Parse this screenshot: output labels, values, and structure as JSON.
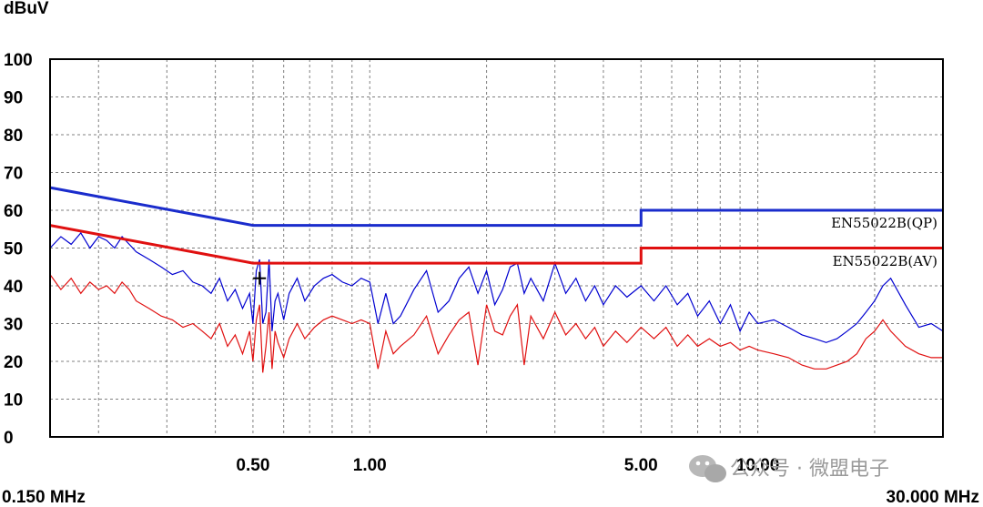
{
  "chart_data": {
    "type": "line",
    "ylabel": "dBuV",
    "ylim": [
      0,
      100
    ],
    "yticks": [
      0,
      10,
      20,
      30,
      40,
      50,
      60,
      70,
      80,
      90,
      100
    ],
    "x_scale": "log",
    "x_unit": "MHz",
    "xlim": [
      0.15,
      30.0
    ],
    "xlim_labels": [
      "0.150 MHz",
      "30.000 MHz"
    ],
    "xtick_labels": [
      {
        "value": 0.5,
        "label": "0.50"
      },
      {
        "value": 1.0,
        "label": "1.00"
      },
      {
        "value": 5.0,
        "label": "5.00"
      },
      {
        "value": 10.0,
        "label": "10.00"
      }
    ],
    "grid": true,
    "colors": {
      "qp": "#0000d0",
      "av": "#e01010",
      "grid": "#808080",
      "frame": "#000000"
    },
    "series": [
      {
        "name": "EN55022B(QP)",
        "kind": "limit",
        "color": "#1a2ccc",
        "x": [
          0.15,
          0.5,
          0.5,
          5.0,
          5.0,
          30.0
        ],
        "y": [
          66,
          56,
          56,
          56,
          60,
          60
        ]
      },
      {
        "name": "EN55022B(AV)",
        "kind": "limit",
        "color": "#e01010",
        "x": [
          0.15,
          0.5,
          0.5,
          5.0,
          5.0,
          30.0
        ],
        "y": [
          56,
          46,
          46,
          46,
          50,
          50
        ]
      },
      {
        "kind": "measurement",
        "color": "#0000d0",
        "x": [
          0.15,
          0.16,
          0.17,
          0.18,
          0.19,
          0.2,
          0.21,
          0.22,
          0.23,
          0.24,
          0.25,
          0.27,
          0.29,
          0.31,
          0.33,
          0.35,
          0.37,
          0.39,
          0.41,
          0.43,
          0.45,
          0.47,
          0.49,
          0.5,
          0.51,
          0.52,
          0.53,
          0.54,
          0.55,
          0.56,
          0.57,
          0.58,
          0.6,
          0.62,
          0.65,
          0.68,
          0.72,
          0.76,
          0.8,
          0.85,
          0.9,
          0.95,
          1.0,
          1.05,
          1.1,
          1.15,
          1.2,
          1.3,
          1.4,
          1.5,
          1.6,
          1.7,
          1.8,
          1.9,
          2.0,
          2.1,
          2.2,
          2.3,
          2.4,
          2.5,
          2.6,
          2.8,
          3.0,
          3.2,
          3.4,
          3.6,
          3.8,
          4.0,
          4.3,
          4.6,
          5.0,
          5.4,
          5.8,
          6.2,
          6.6,
          7.0,
          7.5,
          8.0,
          8.5,
          9.0,
          9.5,
          10.0,
          11.0,
          12.0,
          13.0,
          14.0,
          15.0,
          16.0,
          17.0,
          18.0,
          19.0,
          20.0,
          21.0,
          22.0,
          24.0,
          26.0,
          28.0,
          30.0
        ],
        "y": [
          50,
          53,
          51,
          54,
          50,
          53,
          52,
          50,
          53,
          51,
          49,
          47,
          45,
          43,
          44,
          41,
          40,
          38,
          42,
          36,
          39,
          34,
          38,
          30,
          44,
          47,
          30,
          33,
          47,
          28,
          36,
          38,
          31,
          38,
          42,
          36,
          40,
          42,
          43,
          41,
          40,
          42,
          41,
          30,
          38,
          30,
          32,
          39,
          44,
          33,
          36,
          42,
          45,
          38,
          44,
          35,
          39,
          45,
          46,
          38,
          42,
          36,
          46,
          38,
          42,
          36,
          40,
          35,
          40,
          37,
          40,
          36,
          40,
          35,
          38,
          32,
          36,
          30,
          35,
          28,
          33,
          30,
          31,
          29,
          27,
          26,
          25,
          26,
          28,
          30,
          33,
          36,
          40,
          42,
          35,
          29,
          30,
          28
        ]
      },
      {
        "kind": "measurement",
        "color": "#e01010",
        "x": [
          0.15,
          0.16,
          0.17,
          0.18,
          0.19,
          0.2,
          0.21,
          0.22,
          0.23,
          0.24,
          0.25,
          0.27,
          0.29,
          0.31,
          0.33,
          0.35,
          0.37,
          0.39,
          0.41,
          0.43,
          0.45,
          0.47,
          0.49,
          0.5,
          0.51,
          0.52,
          0.53,
          0.54,
          0.55,
          0.56,
          0.57,
          0.58,
          0.6,
          0.62,
          0.65,
          0.68,
          0.72,
          0.76,
          0.8,
          0.85,
          0.9,
          0.95,
          1.0,
          1.05,
          1.1,
          1.15,
          1.2,
          1.3,
          1.4,
          1.5,
          1.6,
          1.7,
          1.8,
          1.9,
          2.0,
          2.1,
          2.2,
          2.3,
          2.4,
          2.5,
          2.6,
          2.8,
          3.0,
          3.2,
          3.4,
          3.6,
          3.8,
          4.0,
          4.3,
          4.6,
          5.0,
          5.4,
          5.8,
          6.2,
          6.6,
          7.0,
          7.5,
          8.0,
          8.5,
          9.0,
          9.5,
          10.0,
          11.0,
          12.0,
          13.0,
          14.0,
          15.0,
          16.0,
          17.0,
          18.0,
          19.0,
          20.0,
          21.0,
          22.0,
          24.0,
          26.0,
          28.0,
          30.0
        ],
        "y": [
          43,
          39,
          42,
          38,
          41,
          39,
          40,
          38,
          41,
          39,
          36,
          34,
          32,
          31,
          29,
          30,
          28,
          26,
          30,
          24,
          27,
          22,
          28,
          20,
          31,
          35,
          17,
          24,
          33,
          18,
          28,
          25,
          21,
          26,
          30,
          26,
          29,
          31,
          32,
          31,
          30,
          31,
          30,
          18,
          28,
          22,
          24,
          27,
          32,
          22,
          27,
          31,
          33,
          19,
          35,
          28,
          27,
          32,
          35,
          19,
          32,
          26,
          33,
          27,
          30,
          26,
          29,
          24,
          28,
          25,
          29,
          26,
          29,
          24,
          27,
          24,
          26,
          24,
          25,
          23,
          24,
          23,
          22,
          21,
          19,
          18,
          18,
          19,
          20,
          22,
          26,
          28,
          31,
          28,
          24,
          22,
          21,
          21
        ]
      }
    ],
    "marker": {
      "symbol": "+",
      "x": 0.52,
      "y": 42
    }
  },
  "watermark": {
    "text": "公众号 · 微盟电子",
    "icon": "wechat-icon"
  }
}
